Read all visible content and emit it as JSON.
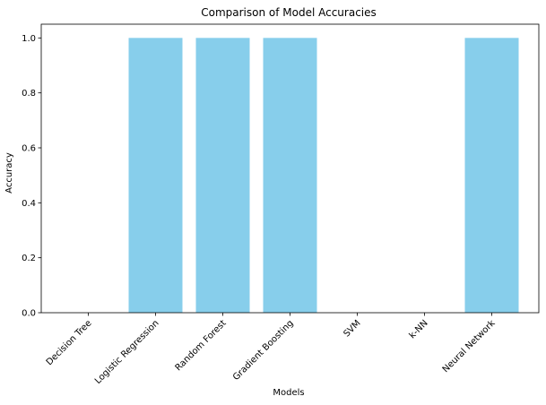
{
  "chart_data": {
    "type": "bar",
    "title": "Comparison of Model Accuracies",
    "xlabel": "Models",
    "ylabel": "Accuracy",
    "categories": [
      "Decision Tree",
      "Logistic Regression",
      "Random Forest",
      "Gradient Boosting",
      "SVM",
      "k-NN",
      "Neural Network"
    ],
    "values": [
      0,
      1.0,
      1.0,
      1.0,
      0,
      0,
      1.0
    ],
    "ylim": [
      0,
      1.05
    ],
    "yticks": [
      "0.0",
      "0.2",
      "0.4",
      "0.6",
      "0.8",
      "1.0"
    ],
    "bar_color": "#87CEEB",
    "grid": false,
    "legend": "none"
  }
}
